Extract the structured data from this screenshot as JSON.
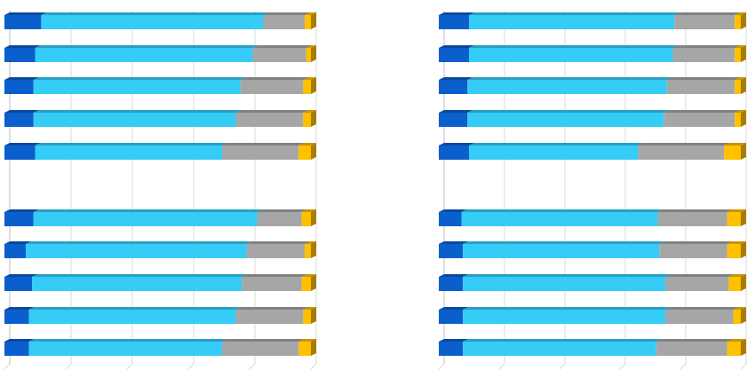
{
  "chart_data": [
    {
      "type": "bar",
      "orientation": "horizontal",
      "stacked": "100%",
      "grid": true,
      "legend": "none",
      "title": "",
      "xlabel": "",
      "ylabel": "",
      "xlim": [
        0,
        100
      ],
      "series_colors": [
        "#0a5fcc",
        "#35ccf8",
        "#a6a6a6",
        "#ffc000"
      ],
      "groups": [
        {
          "bars": [
            [
              12,
              72.5,
              13.5,
              2
            ],
            [
              10,
              71,
              17.5,
              1.5
            ],
            [
              9.5,
              67.5,
              20.5,
              2.5
            ],
            [
              9.5,
              66,
              22,
              2.5
            ],
            [
              10,
              61,
              25,
              4
            ]
          ]
        },
        {
          "bars": [
            [
              9.5,
              73,
              14.5,
              3
            ],
            [
              7,
              72,
              19,
              2
            ],
            [
              9,
              68.5,
              19.5,
              3
            ],
            [
              8,
              67.5,
              22,
              2.5
            ],
            [
              8,
              63,
              25,
              4
            ]
          ]
        }
      ]
    },
    {
      "type": "bar",
      "orientation": "horizontal",
      "stacked": "100%",
      "grid": true,
      "legend": "none",
      "title": "",
      "xlabel": "",
      "ylabel": "",
      "xlim": [
        0,
        100
      ],
      "series_colors": [
        "#0a5fcc",
        "#35ccf8",
        "#a6a6a6",
        "#ffc000"
      ],
      "groups": [
        {
          "bars": [
            [
              10,
              68,
              20,
              2
            ],
            [
              10,
              67.5,
              20.5,
              2
            ],
            [
              9.5,
              66,
              22.5,
              2
            ],
            [
              9.5,
              65,
              23.5,
              2
            ],
            [
              10,
              56,
              28.5,
              5.5
            ]
          ]
        },
        {
          "bars": [
            [
              7.5,
              65,
              23,
              4.5
            ],
            [
              8,
              65,
              22.5,
              4.5
            ],
            [
              8,
              67,
              21,
              4
            ],
            [
              8,
              67,
              22.5,
              2.5
            ],
            [
              8,
              64,
              23.5,
              4.5
            ]
          ]
        }
      ]
    }
  ]
}
